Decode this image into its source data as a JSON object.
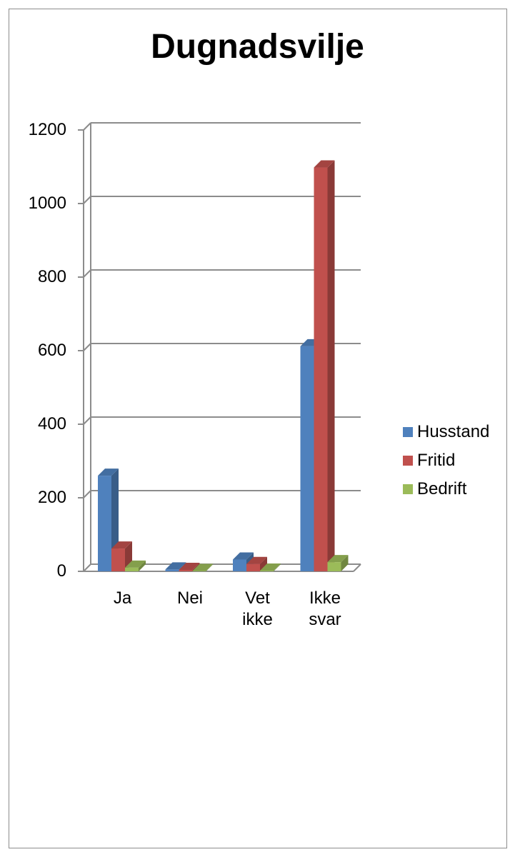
{
  "chart_data": {
    "type": "bar",
    "title": "Dugnadsvilje",
    "xlabel": "",
    "ylabel": "",
    "categories": [
      "Ja",
      "Nei",
      "Vet\nikke",
      "Ikke\nsvar"
    ],
    "series": [
      {
        "name": "Husstand",
        "color": "#4f81bd",
        "values": [
          260,
          5,
          32,
          612
        ]
      },
      {
        "name": "Fritid",
        "color": "#c0504d",
        "values": [
          62,
          4,
          20,
          1098
        ]
      },
      {
        "name": "Bedrift",
        "color": "#9bbb59",
        "values": [
          10,
          1,
          2,
          25
        ]
      }
    ],
    "ylim": [
      0,
      1200
    ],
    "yticks": [
      0,
      200,
      400,
      600,
      800,
      1000,
      1200
    ],
    "grid": true,
    "legend": "right"
  }
}
